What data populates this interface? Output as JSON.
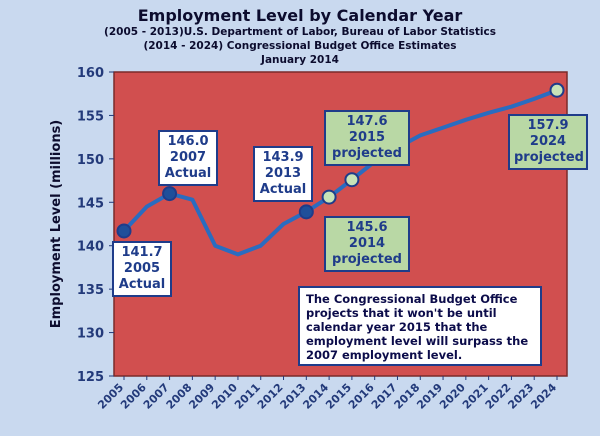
{
  "chart_data": {
    "type": "line",
    "title": "Employment Level by Calendar Year",
    "subtitle_lines": [
      "(2005 - 2013)U.S. Department of Labor, Bureau of Labor Statistics",
      "(2014 - 2024) Congressional Budget Office Estimates",
      "January 2014"
    ],
    "ylabel": "Employment Level (millions)",
    "xlabel": "",
    "ylim": [
      125,
      160
    ],
    "yticks": [
      "125",
      "130",
      "135",
      "140",
      "145",
      "150",
      "155",
      "160"
    ],
    "x": [
      "2005",
      "2006",
      "2007",
      "2008",
      "2009",
      "2010",
      "2011",
      "2012",
      "2013",
      "2014",
      "2015",
      "2016",
      "2017",
      "2018",
      "2019",
      "2020",
      "2021",
      "2022",
      "2023",
      "2024"
    ],
    "values": [
      141.7,
      144.5,
      146.0,
      145.3,
      140.0,
      139.0,
      140.0,
      142.5,
      143.9,
      145.6,
      147.6,
      149.7,
      151.3,
      152.7,
      153.6,
      154.5,
      155.3,
      156.0,
      156.9,
      157.9
    ],
    "grid": false,
    "plot_background": "#d14f4f",
    "line_color": "#2a6cc0",
    "actual_marker_color": "#1f4f9a",
    "projected_marker_color": "#c8e3b7",
    "markers": [
      {
        "x": "2005",
        "y": 141.7,
        "kind": "actual"
      },
      {
        "x": "2007",
        "y": 146.0,
        "kind": "actual"
      },
      {
        "x": "2013",
        "y": 143.9,
        "kind": "actual"
      },
      {
        "x": "2014",
        "y": 145.6,
        "kind": "projected"
      },
      {
        "x": "2015",
        "y": 147.6,
        "kind": "projected"
      },
      {
        "x": "2024",
        "y": 157.9,
        "kind": "projected"
      }
    ],
    "annotations": [
      {
        "lines": [
          "141.7",
          "2005",
          "Actual"
        ],
        "kind": "actual"
      },
      {
        "lines": [
          "146.0",
          "2007",
          "Actual"
        ],
        "kind": "actual"
      },
      {
        "lines": [
          "143.9",
          "2013",
          "Actual"
        ],
        "kind": "actual"
      },
      {
        "lines": [
          "145.6",
          "2014",
          "projected"
        ],
        "kind": "projected"
      },
      {
        "lines": [
          "147.6",
          "2015",
          "projected"
        ],
        "kind": "projected"
      },
      {
        "lines": [
          "157.9",
          "2024",
          "projected"
        ],
        "kind": "projected"
      }
    ],
    "note": "The Congressional Budget Office projects that it won't be until calendar year 2015 that the employment level will surpass the 2007 employment level."
  }
}
